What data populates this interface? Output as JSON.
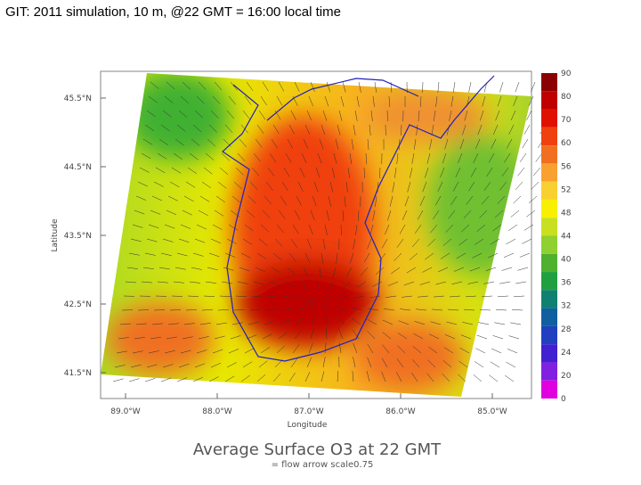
{
  "header": {
    "title": "GIT: 2011 simulation, 10 m, @22 GMT = 16:00 local time"
  },
  "map": {
    "title": "Average Surface O3 at 22 GMT",
    "subtitle": "= flow arrow scale0.75",
    "y_axis_label": "Latitude",
    "x_axis_label": "Longitude",
    "lat_ticks": [
      "45.5°N",
      "44.5°N",
      "43.5°N",
      "42.5°N",
      "41.5°N"
    ],
    "lon_ticks": [
      "89.0°W",
      "88.0°W",
      "87.0°W",
      "86.0°W",
      "85.0°W"
    ]
  },
  "colorbar": {
    "labels": [
      "90",
      "80",
      "70",
      "60",
      "56",
      "52",
      "48",
      "44",
      "40",
      "36",
      "32",
      "28",
      "24",
      "20",
      "0"
    ],
    "colors": [
      "#8b0000",
      "#c00000",
      "#e01000",
      "#f04010",
      "#f07020",
      "#f8a030",
      "#f8d030",
      "#f8f000",
      "#c8e020",
      "#90d030",
      "#50b030",
      "#20a040",
      "#108070",
      "#1060a0",
      "#2040c0",
      "#4020d0",
      "#8020e0",
      "#e000e0"
    ]
  }
}
